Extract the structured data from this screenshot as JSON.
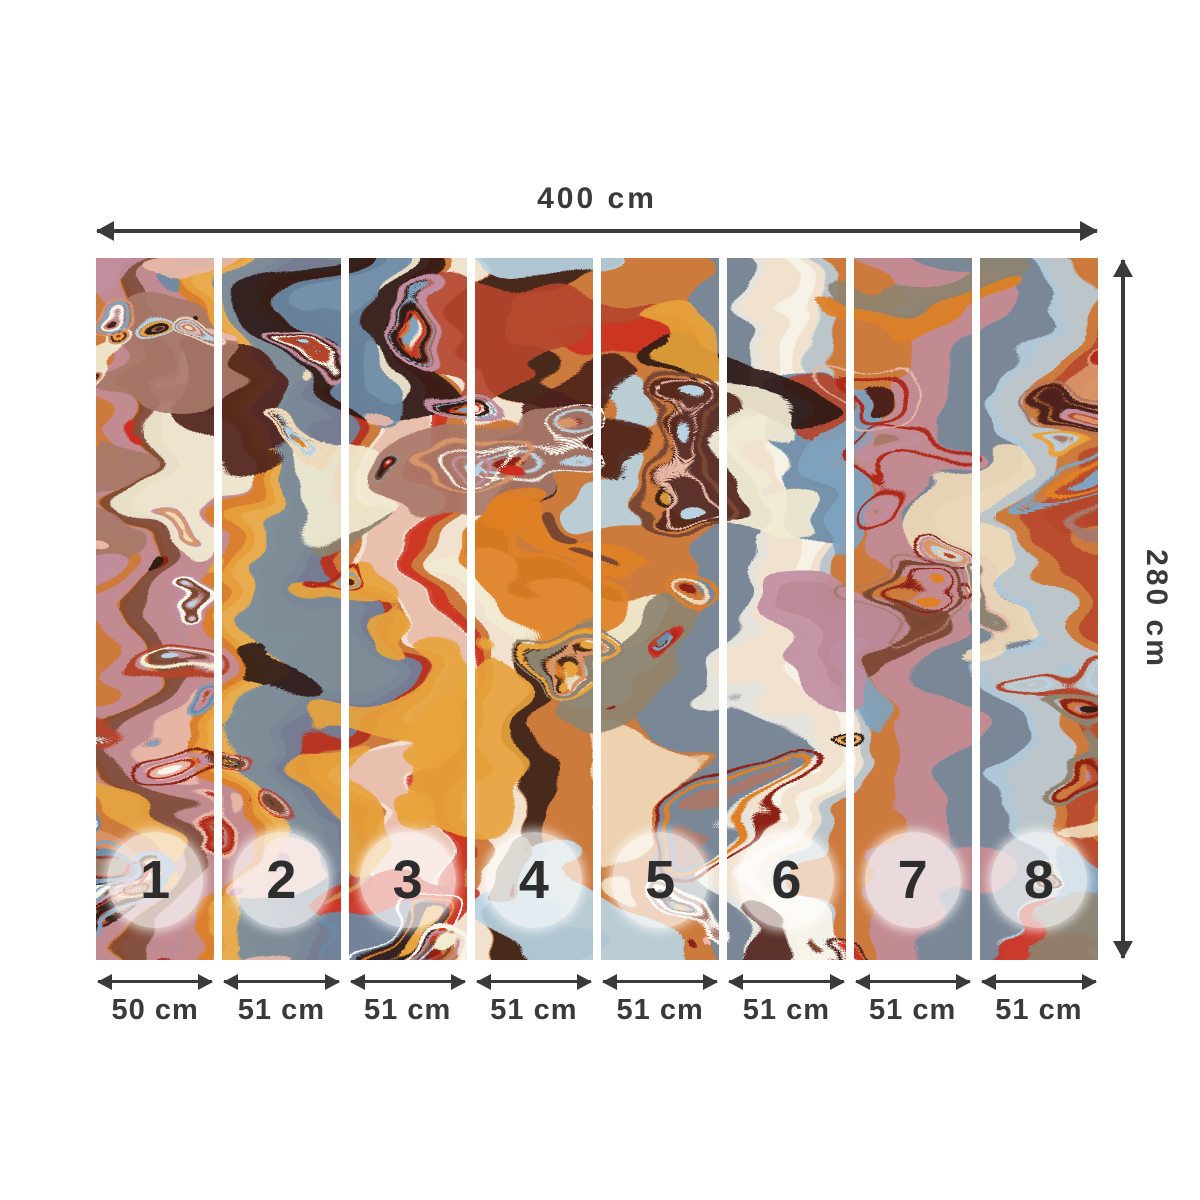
{
  "diagram": {
    "product": "abstract-marbled-wall-mural",
    "total_width_label": "400 cm",
    "total_height_label": "280 cm",
    "panels": [
      {
        "number": "1",
        "width_label": "50 cm"
      },
      {
        "number": "2",
        "width_label": "51 cm"
      },
      {
        "number": "3",
        "width_label": "51 cm"
      },
      {
        "number": "4",
        "width_label": "51 cm"
      },
      {
        "number": "5",
        "width_label": "51 cm"
      },
      {
        "number": "6",
        "width_label": "51 cm"
      },
      {
        "number": "7",
        "width_label": "51 cm"
      },
      {
        "number": "8",
        "width_label": "51 cm"
      }
    ]
  },
  "colors": {
    "dimension": "#3a3a3a",
    "background": "#ffffff",
    "badge_fill": "rgba(255,255,255,0.68)",
    "badge_text": "#2d2d2d",
    "art_background": "#cd7a3c",
    "art_palette": [
      "#e08024",
      "#cc2e20",
      "#b02a1e",
      "#8c2418",
      "#4e241d",
      "#2f1b16",
      "#f2ecd2",
      "#f7f4ea",
      "#e8b8a8",
      "#d9956a",
      "#e7a33c",
      "#b5452c",
      "#7fa3c0",
      "#b9d2e2",
      "#6b8aa6",
      "#c08ea0",
      "#8d8370",
      "#7a4630",
      "#efd9b8",
      "#a8786a"
    ]
  }
}
